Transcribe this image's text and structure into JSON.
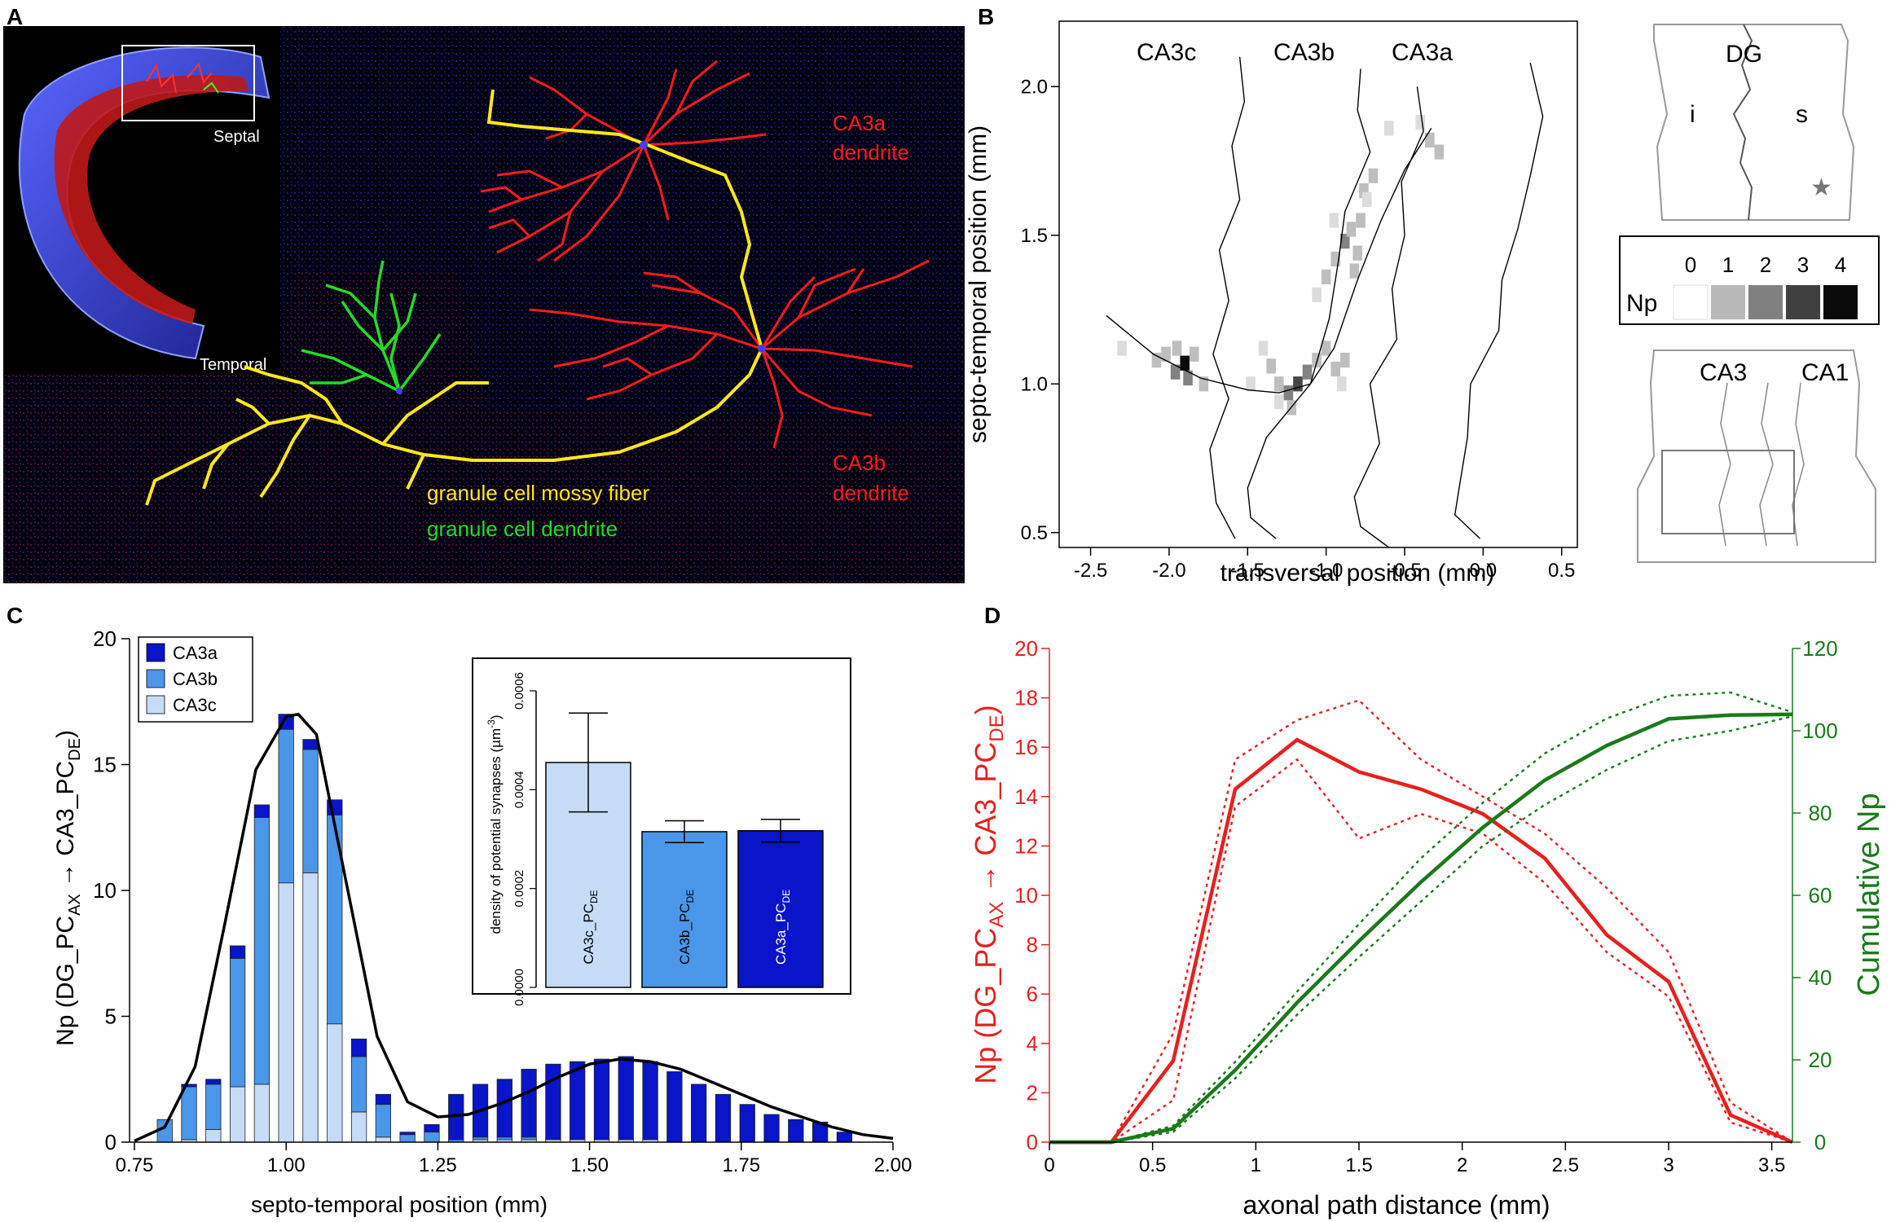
{
  "panel_letters": {
    "a": "A",
    "b": "B",
    "c": "C",
    "d": "D"
  },
  "colors": {
    "red": "#ff1a1a",
    "yellow": "#ffe81a",
    "green": "#22dd22",
    "ca3a": "#0a14c8",
    "ca3b": "#4a97e9",
    "ca3c": "#c6dcf6",
    "d_red": "#e62020",
    "d_green": "#1a7a1a"
  },
  "panel_a": {
    "labels": {
      "septal": "Septal",
      "temporal": "Temporal",
      "ca3a_line1": "CA3a",
      "ca3a_line2": "dendrite",
      "ca3b_line1": "CA3b",
      "ca3b_line2": "dendrite",
      "mossy": "granule cell mossy fiber",
      "gc_dendrite": "granule cell dendrite"
    }
  },
  "panel_b": {
    "region_labels": {
      "ca3c": "CA3c",
      "ca3b": "CA3b",
      "ca3a": "CA3a"
    },
    "x_label": "transversal position (mm)",
    "y_label": "septo-temporal position (mm)",
    "x_ticks": [
      "-2.5",
      "-2.0",
      "-1.5",
      "-1.0",
      "-0.5",
      "0.0",
      "0.5"
    ],
    "y_ticks": [
      "0.5",
      "1.0",
      "1.5",
      "2.0"
    ],
    "schematic_top": {
      "dg": "DG",
      "i": "i",
      "s": "s",
      "star": "★"
    },
    "colorbar": {
      "label": "Np",
      "ticks": [
        "0",
        "1",
        "2",
        "3",
        "4"
      ]
    },
    "schematic_bottom": {
      "ca3": "CA3",
      "ca1": "CA1"
    }
  },
  "chart_data": [
    {
      "type": "heatmap",
      "panel": "B",
      "xlabel": "transversal position (mm)",
      "ylabel": "septo-temporal position (mm)",
      "xlim": [
        -2.7,
        0.6
      ],
      "ylim": [
        0.45,
        2.22
      ],
      "colorbar_range": [
        0,
        4
      ],
      "colorbar_label": "Np",
      "region_labels": [
        "CA3c",
        "CA3b",
        "CA3a"
      ],
      "cells": [
        {
          "x": -2.08,
          "y": 1.08,
          "v": 1
        },
        {
          "x": -2.02,
          "y": 1.1,
          "v": 1
        },
        {
          "x": -1.96,
          "y": 1.04,
          "v": 2
        },
        {
          "x": -1.9,
          "y": 1.07,
          "v": 4
        },
        {
          "x": -1.88,
          "y": 1.02,
          "v": 2
        },
        {
          "x": -1.84,
          "y": 1.1,
          "v": 1
        },
        {
          "x": -1.95,
          "y": 1.12,
          "v": 1
        },
        {
          "x": -2.3,
          "y": 1.12,
          "v": 0.5
        },
        {
          "x": -1.78,
          "y": 1.0,
          "v": 1
        },
        {
          "x": -1.4,
          "y": 1.12,
          "v": 0.5
        },
        {
          "x": -1.35,
          "y": 1.06,
          "v": 1
        },
        {
          "x": -1.3,
          "y": 1.0,
          "v": 1
        },
        {
          "x": -1.24,
          "y": 0.97,
          "v": 2
        },
        {
          "x": -1.18,
          "y": 1.0,
          "v": 3
        },
        {
          "x": -1.12,
          "y": 1.04,
          "v": 2
        },
        {
          "x": -1.06,
          "y": 1.08,
          "v": 1
        },
        {
          "x": -1.0,
          "y": 1.12,
          "v": 1
        },
        {
          "x": -1.22,
          "y": 0.92,
          "v": 1
        },
        {
          "x": -1.3,
          "y": 0.94,
          "v": 0.5
        },
        {
          "x": -0.94,
          "y": 1.05,
          "v": 1
        },
        {
          "x": -0.88,
          "y": 1.08,
          "v": 1
        },
        {
          "x": -0.9,
          "y": 1.0,
          "v": 0.5
        },
        {
          "x": -1.48,
          "y": 1.0,
          "v": 0.5
        },
        {
          "x": -1.06,
          "y": 1.3,
          "v": 0.5
        },
        {
          "x": -1.0,
          "y": 1.36,
          "v": 1
        },
        {
          "x": -0.94,
          "y": 1.42,
          "v": 1
        },
        {
          "x": -0.88,
          "y": 1.48,
          "v": 2
        },
        {
          "x": -0.8,
          "y": 1.44,
          "v": 1
        },
        {
          "x": -0.84,
          "y": 1.52,
          "v": 1
        },
        {
          "x": -0.78,
          "y": 1.55,
          "v": 1
        },
        {
          "x": -0.82,
          "y": 1.38,
          "v": 1
        },
        {
          "x": -0.76,
          "y": 1.65,
          "v": 1
        },
        {
          "x": -0.7,
          "y": 1.7,
          "v": 1
        },
        {
          "x": -0.74,
          "y": 1.62,
          "v": 0.5
        },
        {
          "x": -0.95,
          "y": 1.55,
          "v": 0.5
        },
        {
          "x": -0.34,
          "y": 1.82,
          "v": 1
        },
        {
          "x": -0.28,
          "y": 1.78,
          "v": 1
        },
        {
          "x": -0.4,
          "y": 1.88,
          "v": 0.5
        },
        {
          "x": -0.6,
          "y": 1.86,
          "v": 0.5
        }
      ]
    },
    {
      "type": "bar",
      "panel": "C",
      "title": "",
      "xlabel": "septo-temporal position (mm)",
      "ylabel": "Np (DG_PCAX → CA3_PCDE)",
      "ylim": [
        0,
        20
      ],
      "xlim": [
        0.75,
        2.0
      ],
      "x_ticks": [
        "0.75",
        "1.00",
        "1.25",
        "1.50",
        "1.75",
        "2.00"
      ],
      "y_ticks": [
        "0",
        "5",
        "10",
        "15",
        "20"
      ],
      "stacked": true,
      "bin_width": 0.04,
      "x": [
        0.8,
        0.84,
        0.88,
        0.92,
        0.96,
        1.0,
        1.04,
        1.08,
        1.12,
        1.16,
        1.2,
        1.24,
        1.28,
        1.32,
        1.36,
        1.4,
        1.44,
        1.48,
        1.52,
        1.56,
        1.6,
        1.64,
        1.68,
        1.72,
        1.76,
        1.8,
        1.84,
        1.88,
        1.92
      ],
      "series": [
        {
          "name": "CA3c",
          "values": [
            0,
            0.1,
            0.5,
            2.2,
            2.3,
            10.3,
            10.7,
            4.7,
            1.2,
            0.2,
            0,
            0,
            0,
            0.1,
            0.1,
            0.1,
            0.1,
            0.1,
            0.1,
            0.1,
            0.1,
            0,
            0,
            0,
            0,
            0,
            0,
            0,
            0
          ]
        },
        {
          "name": "CA3b",
          "values": [
            0.9,
            2.1,
            1.8,
            5.1,
            10.6,
            6.1,
            4.9,
            8.3,
            2.2,
            1.3,
            0.3,
            0.4,
            0.1,
            0.1,
            0.1,
            0.1,
            0,
            0,
            0,
            0,
            0,
            0,
            0,
            0,
            0,
            0,
            0,
            0,
            0
          ]
        },
        {
          "name": "CA3a",
          "values": [
            0,
            0.1,
            0.2,
            0.5,
            0.5,
            0.6,
            0.4,
            0.6,
            0.7,
            0.4,
            0.1,
            0.3,
            1.8,
            2.1,
            2.3,
            2.7,
            3.0,
            3.1,
            3.2,
            3.3,
            3.1,
            2.8,
            2.3,
            1.9,
            1.5,
            1.1,
            0.9,
            0.8,
            0.4
          ]
        }
      ],
      "fit_curve": {
        "x": [
          0.75,
          0.8,
          0.85,
          0.9,
          0.95,
          1.0,
          1.02,
          1.05,
          1.1,
          1.15,
          1.2,
          1.25,
          1.3,
          1.35,
          1.4,
          1.45,
          1.5,
          1.55,
          1.6,
          1.65,
          1.7,
          1.75,
          1.8,
          1.85,
          1.9,
          1.95,
          2.0
        ],
        "y": [
          0.05,
          0.6,
          3.0,
          8.8,
          14.8,
          16.9,
          17.0,
          16.2,
          10.2,
          4.2,
          1.6,
          1.0,
          1.1,
          1.5,
          2.0,
          2.6,
          3.1,
          3.3,
          3.2,
          2.9,
          2.4,
          1.9,
          1.4,
          1.0,
          0.6,
          0.3,
          0.15
        ]
      },
      "legend": [
        "CA3a",
        "CA3b",
        "CA3c"
      ],
      "legend_position": "top-left"
    },
    {
      "type": "bar",
      "panel": "C-inset",
      "ylabel": "density of potential synapses (µm⁻³)",
      "ylim": [
        0,
        0.0006
      ],
      "y_ticks": [
        "0.0000",
        "0.0002",
        "0.0004",
        "0.0006"
      ],
      "categories": [
        "CA3c_PCDE",
        "CA3b_PCDE",
        "CA3a_PCDE"
      ],
      "values": [
        0.000455,
        0.000315,
        0.000317
      ],
      "error": [
        0.0001,
        2.2e-05,
        2.3e-05
      ]
    },
    {
      "type": "line",
      "panel": "D",
      "xlabel": "axonal path distance (mm)",
      "ylabel_left": "Np (DG_PCAX → CA3_PCDE)",
      "ylabel_right": "Cumulative Np",
      "xlim": [
        0,
        3.6
      ],
      "ylim_left": [
        0,
        20
      ],
      "ylim_right": [
        0,
        120
      ],
      "x_ticks": [
        "0",
        "0.5",
        "1",
        "1.5",
        "2",
        "2.5",
        "3",
        "3.5"
      ],
      "y_ticks_left": [
        "0",
        "2",
        "4",
        "6",
        "8",
        "10",
        "12",
        "14",
        "16",
        "18",
        "20"
      ],
      "y_ticks_right": [
        "0",
        "20",
        "40",
        "60",
        "80",
        "100",
        "120"
      ],
      "x": [
        0,
        0.3,
        0.6,
        0.9,
        1.2,
        1.5,
        1.8,
        2.1,
        2.4,
        2.7,
        3.0,
        3.3,
        3.6
      ],
      "series": [
        {
          "name": "Np mean",
          "axis": "left",
          "style": "solid",
          "values": [
            0,
            0,
            3.3,
            14.3,
            16.3,
            15.0,
            14.3,
            13.3,
            11.5,
            8.4,
            6.5,
            1.1,
            0
          ]
        },
        {
          "name": "Np upper",
          "axis": "left",
          "style": "dotted",
          "values": [
            0,
            0,
            4.4,
            15.5,
            17.1,
            17.9,
            15.5,
            14.0,
            12.5,
            10.3,
            7.7,
            1.6,
            0
          ]
        },
        {
          "name": "Np lower",
          "axis": "left",
          "style": "dotted",
          "values": [
            0,
            0,
            1.7,
            13.6,
            15.5,
            12.3,
            13.3,
            12.5,
            10.5,
            7.7,
            5.9,
            0.8,
            0
          ]
        },
        {
          "name": "Cumulative mean",
          "axis": "right",
          "style": "solid",
          "values": [
            0,
            0,
            3.3,
            17.5,
            33.9,
            48.9,
            63.2,
            76.5,
            88.0,
            96.4,
            102.9,
            103.8,
            104
          ]
        },
        {
          "name": "Cumulative upper",
          "axis": "right",
          "style": "dotted",
          "values": [
            0,
            0,
            4.0,
            19.5,
            36.6,
            53.0,
            69.0,
            82.5,
            94.5,
            103.0,
            108.5,
            109.3,
            104.5
          ]
        },
        {
          "name": "Cumulative lower",
          "axis": "right",
          "style": "dotted",
          "values": [
            0,
            0,
            2.5,
            15.5,
            31.0,
            45.0,
            58.5,
            72.0,
            82.0,
            90.5,
            97.5,
            100.0,
            103.5
          ]
        }
      ]
    }
  ]
}
